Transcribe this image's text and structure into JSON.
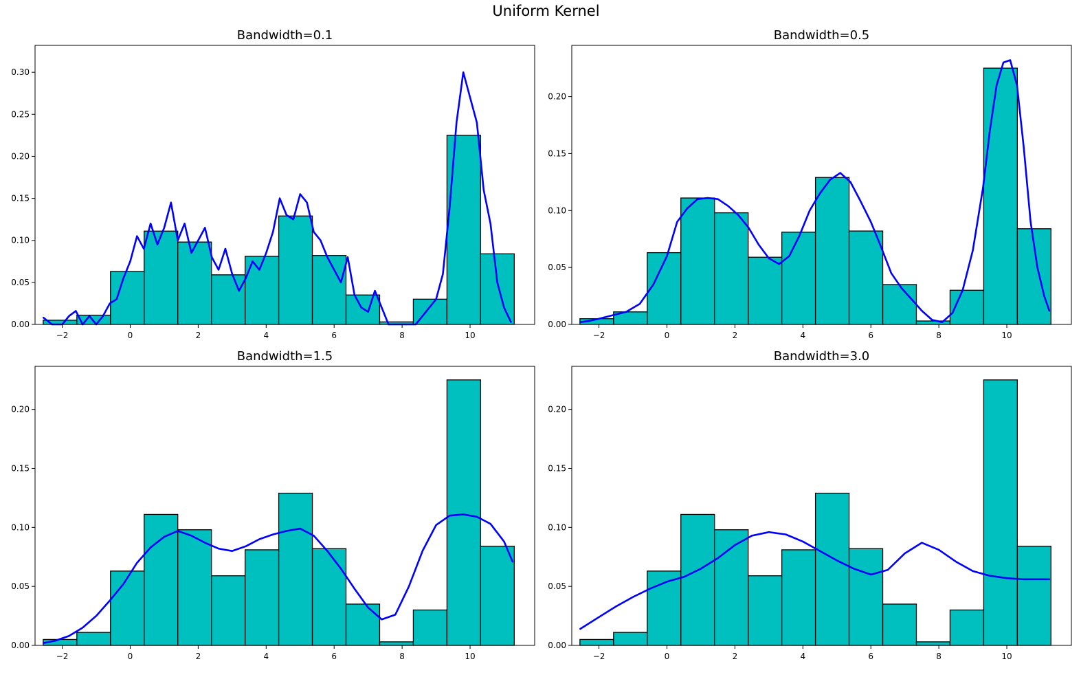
{
  "figure": {
    "suptitle": "Uniform Kernel"
  },
  "colors": {
    "bar_fill": "#00bfbf",
    "bar_edge": "#000000",
    "kde_line": "#0000ff",
    "background": "#ffffff"
  },
  "chart_data": [
    {
      "type": "bar",
      "title": "Bandwidth=0.1",
      "xlabel": "",
      "ylabel": "",
      "xlim": [
        -2.8,
        11.9
      ],
      "ylim": [
        0,
        0.332
      ],
      "xticks": [
        -2,
        0,
        2,
        4,
        6,
        8,
        10
      ],
      "xtick_labels": [
        "−2",
        "0",
        "2",
        "4",
        "6",
        "8",
        "10"
      ],
      "yticks": [
        0.0,
        0.05,
        0.1,
        0.15,
        0.2,
        0.25,
        0.3
      ],
      "ytick_labels": [
        "0.00",
        "0.05",
        "0.10",
        "0.15",
        "0.20",
        "0.25",
        "0.30"
      ],
      "bin_edges": [
        -2.56,
        -1.57,
        -0.58,
        0.41,
        1.4,
        2.39,
        3.38,
        4.37,
        5.36,
        6.35,
        7.34,
        8.33,
        9.32,
        10.31,
        11.3
      ],
      "values": [
        0.005,
        0.011,
        0.063,
        0.111,
        0.098,
        0.059,
        0.081,
        0.129,
        0.082,
        0.035,
        0.003,
        0.03,
        0.225,
        0.084
      ],
      "kde": {
        "x": [
          -2.55,
          -2.3,
          -2.0,
          -1.8,
          -1.6,
          -1.4,
          -1.2,
          -1.0,
          -0.8,
          -0.6,
          -0.4,
          -0.2,
          0.0,
          0.2,
          0.4,
          0.6,
          0.8,
          1.0,
          1.2,
          1.4,
          1.6,
          1.8,
          2.0,
          2.2,
          2.4,
          2.6,
          2.8,
          3.0,
          3.2,
          3.4,
          3.6,
          3.8,
          4.0,
          4.2,
          4.4,
          4.6,
          4.8,
          5.0,
          5.2,
          5.4,
          5.6,
          5.8,
          6.0,
          6.2,
          6.4,
          6.6,
          6.8,
          7.0,
          7.2,
          7.4,
          7.6,
          7.8,
          8.0,
          8.2,
          8.4,
          8.6,
          8.8,
          9.0,
          9.2,
          9.4,
          9.6,
          9.8,
          10.0,
          10.2,
          10.4,
          10.6,
          10.8,
          11.0,
          11.2
        ],
        "y": [
          0.008,
          0.0,
          0.0,
          0.01,
          0.016,
          0.0,
          0.01,
          0.0,
          0.01,
          0.025,
          0.03,
          0.055,
          0.075,
          0.105,
          0.09,
          0.12,
          0.095,
          0.115,
          0.145,
          0.1,
          0.12,
          0.085,
          0.1,
          0.115,
          0.08,
          0.065,
          0.09,
          0.06,
          0.04,
          0.055,
          0.075,
          0.065,
          0.085,
          0.11,
          0.15,
          0.13,
          0.125,
          0.155,
          0.145,
          0.11,
          0.1,
          0.08,
          0.065,
          0.05,
          0.08,
          0.035,
          0.02,
          0.015,
          0.04,
          0.02,
          0.0,
          0.0,
          0.0,
          0.0,
          0.0,
          0.01,
          0.02,
          0.03,
          0.06,
          0.14,
          0.24,
          0.3,
          0.27,
          0.24,
          0.16,
          0.12,
          0.05,
          0.02,
          0.003
        ]
      }
    },
    {
      "type": "bar",
      "title": "Bandwidth=0.5",
      "xlabel": "",
      "ylabel": "",
      "xlim": [
        -2.8,
        11.9
      ],
      "ylim": [
        0,
        0.245
      ],
      "xticks": [
        -2,
        0,
        2,
        4,
        6,
        8,
        10
      ],
      "xtick_labels": [
        "−2",
        "0",
        "2",
        "4",
        "6",
        "8",
        "10"
      ],
      "yticks": [
        0.0,
        0.05,
        0.1,
        0.15,
        0.2
      ],
      "ytick_labels": [
        "0.00",
        "0.05",
        "0.10",
        "0.15",
        "0.20"
      ],
      "bin_edges": [
        -2.56,
        -1.57,
        -0.58,
        0.41,
        1.4,
        2.39,
        3.38,
        4.37,
        5.36,
        6.35,
        7.34,
        8.33,
        9.32,
        10.31,
        11.3
      ],
      "values": [
        0.005,
        0.011,
        0.063,
        0.111,
        0.098,
        0.059,
        0.081,
        0.129,
        0.082,
        0.035,
        0.003,
        0.03,
        0.225,
        0.084
      ],
      "kde": {
        "x": [
          -2.55,
          -2.3,
          -2.0,
          -1.6,
          -1.2,
          -0.8,
          -0.4,
          0.0,
          0.3,
          0.6,
          0.9,
          1.2,
          1.5,
          1.8,
          2.1,
          2.4,
          2.7,
          3.0,
          3.3,
          3.6,
          3.9,
          4.2,
          4.5,
          4.8,
          5.1,
          5.4,
          5.7,
          6.0,
          6.3,
          6.6,
          6.9,
          7.2,
          7.5,
          7.8,
          8.1,
          8.4,
          8.7,
          9.0,
          9.3,
          9.5,
          9.7,
          9.9,
          10.1,
          10.3,
          10.5,
          10.7,
          10.9,
          11.1,
          11.25
        ],
        "y": [
          0.002,
          0.003,
          0.005,
          0.008,
          0.011,
          0.018,
          0.035,
          0.06,
          0.09,
          0.102,
          0.11,
          0.111,
          0.11,
          0.104,
          0.096,
          0.085,
          0.07,
          0.058,
          0.053,
          0.06,
          0.078,
          0.1,
          0.115,
          0.127,
          0.133,
          0.125,
          0.108,
          0.09,
          0.068,
          0.045,
          0.032,
          0.022,
          0.012,
          0.004,
          0.002,
          0.01,
          0.03,
          0.065,
          0.12,
          0.17,
          0.21,
          0.23,
          0.232,
          0.21,
          0.155,
          0.09,
          0.05,
          0.025,
          0.012
        ]
      }
    },
    {
      "type": "bar",
      "title": "Bandwidth=1.5",
      "xlabel": "",
      "ylabel": "",
      "xlim": [
        -2.8,
        11.9
      ],
      "ylim": [
        0,
        0.2365
      ],
      "xticks": [
        -2,
        0,
        2,
        4,
        6,
        8,
        10
      ],
      "xtick_labels": [
        "−2",
        "0",
        "2",
        "4",
        "6",
        "8",
        "10"
      ],
      "yticks": [
        0.0,
        0.05,
        0.1,
        0.15,
        0.2
      ],
      "ytick_labels": [
        "0.00",
        "0.05",
        "0.10",
        "0.15",
        "0.20"
      ],
      "bin_edges": [
        -2.56,
        -1.57,
        -0.58,
        0.41,
        1.4,
        2.39,
        3.38,
        4.37,
        5.36,
        6.35,
        7.34,
        8.33,
        9.32,
        10.31,
        11.3
      ],
      "values": [
        0.005,
        0.011,
        0.063,
        0.111,
        0.098,
        0.059,
        0.081,
        0.129,
        0.082,
        0.035,
        0.003,
        0.03,
        0.225,
        0.084
      ],
      "kde": {
        "x": [
          -2.55,
          -2.2,
          -1.8,
          -1.4,
          -1.0,
          -0.6,
          -0.2,
          0.2,
          0.6,
          1.0,
          1.4,
          1.8,
          2.2,
          2.6,
          3.0,
          3.4,
          3.8,
          4.2,
          4.6,
          5.0,
          5.4,
          5.8,
          6.2,
          6.6,
          7.0,
          7.4,
          7.8,
          8.2,
          8.6,
          9.0,
          9.4,
          9.8,
          10.2,
          10.6,
          11.0,
          11.25
        ],
        "y": [
          0.002,
          0.004,
          0.008,
          0.015,
          0.025,
          0.038,
          0.052,
          0.07,
          0.083,
          0.092,
          0.097,
          0.093,
          0.087,
          0.082,
          0.08,
          0.084,
          0.09,
          0.094,
          0.097,
          0.099,
          0.093,
          0.08,
          0.065,
          0.048,
          0.032,
          0.022,
          0.026,
          0.05,
          0.08,
          0.102,
          0.11,
          0.111,
          0.109,
          0.103,
          0.088,
          0.071
        ]
      }
    },
    {
      "type": "bar",
      "title": "Bandwidth=3.0",
      "xlabel": "",
      "ylabel": "",
      "xlim": [
        -2.8,
        11.9
      ],
      "ylim": [
        0,
        0.2365
      ],
      "xticks": [
        -2,
        0,
        2,
        4,
        6,
        8,
        10
      ],
      "xtick_labels": [
        "−2",
        "0",
        "2",
        "4",
        "6",
        "8",
        "10"
      ],
      "yticks": [
        0.0,
        0.05,
        0.1,
        0.15,
        0.2
      ],
      "ytick_labels": [
        "0.00",
        "0.05",
        "0.10",
        "0.15",
        "0.20"
      ],
      "bin_edges": [
        -2.56,
        -1.57,
        -0.58,
        0.41,
        1.4,
        2.39,
        3.38,
        4.37,
        5.36,
        6.35,
        7.34,
        8.33,
        9.32,
        10.31,
        11.3
      ],
      "values": [
        0.005,
        0.011,
        0.063,
        0.111,
        0.098,
        0.059,
        0.081,
        0.129,
        0.082,
        0.035,
        0.003,
        0.03,
        0.225,
        0.084
      ],
      "kde": {
        "x": [
          -2.55,
          -2.0,
          -1.5,
          -1.0,
          -0.5,
          0.0,
          0.5,
          1.0,
          1.5,
          2.0,
          2.5,
          3.0,
          3.5,
          4.0,
          4.5,
          5.0,
          5.5,
          6.0,
          6.5,
          7.0,
          7.5,
          8.0,
          8.5,
          9.0,
          9.5,
          10.0,
          10.5,
          11.0,
          11.25
        ],
        "y": [
          0.014,
          0.024,
          0.033,
          0.041,
          0.048,
          0.054,
          0.058,
          0.065,
          0.074,
          0.085,
          0.093,
          0.096,
          0.094,
          0.088,
          0.08,
          0.072,
          0.065,
          0.06,
          0.064,
          0.078,
          0.087,
          0.081,
          0.071,
          0.063,
          0.059,
          0.057,
          0.056,
          0.056,
          0.056
        ]
      }
    }
  ]
}
